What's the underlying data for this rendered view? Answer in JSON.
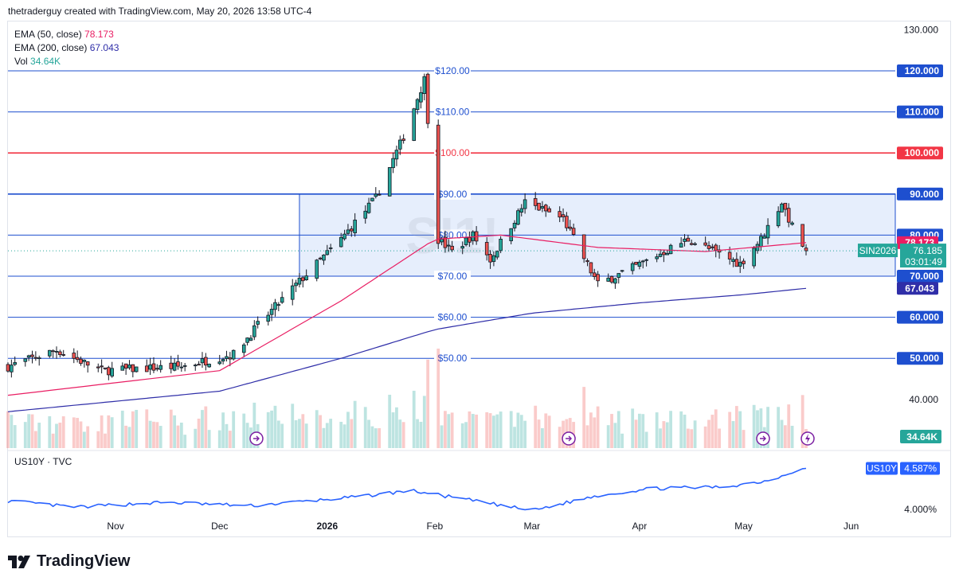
{
  "header": {
    "credit": "thetraderguy created with TradingView.com, May 20, 2026 13:58 UTC-4"
  },
  "legend": {
    "ema50_label": "EMA (50, close)",
    "ema50_value": "78.173",
    "ema200_label": "EMA (200, close)",
    "ema200_value": "67.043",
    "vol_label": "Vol",
    "vol_value": "34.64K"
  },
  "sub_legend": "US10Y · TVC",
  "watermark": "SI1!",
  "footer": {
    "brand": "TradingView"
  },
  "colors": {
    "up": "#26a69a",
    "down": "#ef5350",
    "ema50": "#e91e63",
    "ema200": "#2f2ea8",
    "level": "#1e4fcf",
    "red_level": "#f23645",
    "zone": "#dce7fb"
  },
  "chart_data": [
    {
      "type": "candlestick",
      "symbol": "SIN2026",
      "y_axis_ticks": [
        40,
        130
      ],
      "ylim": [
        34,
        130
      ],
      "x_tick_labels": [
        "Nov",
        "Dec",
        "2026",
        "Feb",
        "Mar",
        "Apr",
        "May",
        "Jun"
      ],
      "last_price": {
        "label": "SIN2026",
        "value": "76.185",
        "countdown": "03:01:49"
      },
      "horizontal_levels": [
        {
          "value": 120,
          "label": "$120.00",
          "axis_label": "120.000",
          "color": "#1e4fcf"
        },
        {
          "value": 110,
          "label": "$110.00",
          "axis_label": "110.000",
          "color": "#1e4fcf"
        },
        {
          "value": 100,
          "label": "$100.00",
          "axis_label": "100.000",
          "color": "#f23645"
        },
        {
          "value": 90,
          "label": "$90.00",
          "axis_label": "90.000",
          "color": "#1e4fcf"
        },
        {
          "value": 80,
          "label": "$80.00",
          "axis_label": "80.000",
          "color": "#1e4fcf"
        },
        {
          "value": 70,
          "label": "$70.00",
          "axis_label": "70.000",
          "color": "#1e4fcf"
        },
        {
          "value": 60,
          "label": "$60.00",
          "axis_label": "60.000",
          "color": "#1e4fcf"
        },
        {
          "value": 50,
          "label": "$50.00",
          "axis_label": "50.000",
          "color": "#1e4fcf"
        }
      ],
      "range_zone": {
        "from_date": "2025-12-24",
        "top": 90,
        "bottom": 70
      },
      "axis_badges": [
        {
          "value": 78.173,
          "text": "78.173",
          "color": "#e91e63"
        },
        {
          "value": 67.043,
          "text": "67.043",
          "color": "#2f2ea8"
        }
      ],
      "volume_badge": "34.64K",
      "close_anchors": [
        {
          "date": "2025-10-01",
          "close": 48
        },
        {
          "date": "2025-10-15",
          "close": 52
        },
        {
          "date": "2025-10-28",
          "close": 47
        },
        {
          "date": "2025-11-20",
          "close": 48
        },
        {
          "date": "2025-12-05",
          "close": 51
        },
        {
          "date": "2025-12-12",
          "close": 58
        },
        {
          "date": "2025-12-22",
          "close": 67
        },
        {
          "date": "2026-01-05",
          "close": 79
        },
        {
          "date": "2026-01-15",
          "close": 89
        },
        {
          "date": "2026-01-23",
          "close": 104
        },
        {
          "date": "2026-01-29",
          "close": 118
        },
        {
          "date": "2026-02-02",
          "close": 79
        },
        {
          "date": "2026-02-06",
          "close": 76
        },
        {
          "date": "2026-02-12",
          "close": 80
        },
        {
          "date": "2026-02-17",
          "close": 74
        },
        {
          "date": "2026-02-27",
          "close": 88
        },
        {
          "date": "2026-03-10",
          "close": 84
        },
        {
          "date": "2026-03-20",
          "close": 68
        },
        {
          "date": "2026-03-30",
          "close": 72
        },
        {
          "date": "2026-04-15",
          "close": 79
        },
        {
          "date": "2026-04-30",
          "close": 73
        },
        {
          "date": "2026-05-06",
          "close": 79
        },
        {
          "date": "2026-05-12",
          "close": 88
        },
        {
          "date": "2026-05-15",
          "close": 82
        },
        {
          "date": "2026-05-19",
          "close": 76.2
        }
      ],
      "ema50_anchors": [
        {
          "date": "2025-10-01",
          "close": 41
        },
        {
          "date": "2025-12-01",
          "close": 47
        },
        {
          "date": "2026-01-05",
          "close": 64
        },
        {
          "date": "2026-02-01",
          "close": 79
        },
        {
          "date": "2026-02-20",
          "close": 80
        },
        {
          "date": "2026-03-20",
          "close": 77
        },
        {
          "date": "2026-04-20",
          "close": 76
        },
        {
          "date": "2026-05-19",
          "close": 78.17
        }
      ],
      "ema200_anchors": [
        {
          "date": "2025-10-01",
          "close": 37
        },
        {
          "date": "2025-12-01",
          "close": 42
        },
        {
          "date": "2026-01-05",
          "close": 50
        },
        {
          "date": "2026-02-01",
          "close": 57
        },
        {
          "date": "2026-03-01",
          "close": 61
        },
        {
          "date": "2026-04-01",
          "close": 63.5
        },
        {
          "date": "2026-05-01",
          "close": 65.5
        },
        {
          "date": "2026-05-19",
          "close": 67.04
        }
      ]
    },
    {
      "type": "line",
      "symbol": "US10Y",
      "ylim": [
        3.85,
        4.65
      ],
      "y_tick_labels": [
        "4.000%"
      ],
      "last_value": "4.587%",
      "anchors": [
        {
          "date": "2025-10-01",
          "value": 4.12
        },
        {
          "date": "2025-10-20",
          "value": 4.03
        },
        {
          "date": "2025-11-15",
          "value": 4.1
        },
        {
          "date": "2025-12-10",
          "value": 4.05
        },
        {
          "date": "2026-01-10",
          "value": 4.18
        },
        {
          "date": "2026-01-25",
          "value": 4.27
        },
        {
          "date": "2026-02-15",
          "value": 4.1
        },
        {
          "date": "2026-03-01",
          "value": 3.98
        },
        {
          "date": "2026-03-20",
          "value": 4.2
        },
        {
          "date": "2026-04-05",
          "value": 4.3
        },
        {
          "date": "2026-04-25",
          "value": 4.32
        },
        {
          "date": "2026-05-08",
          "value": 4.41
        },
        {
          "date": "2026-05-15",
          "value": 4.54
        },
        {
          "date": "2026-05-19",
          "value": 4.587
        }
      ]
    }
  ]
}
